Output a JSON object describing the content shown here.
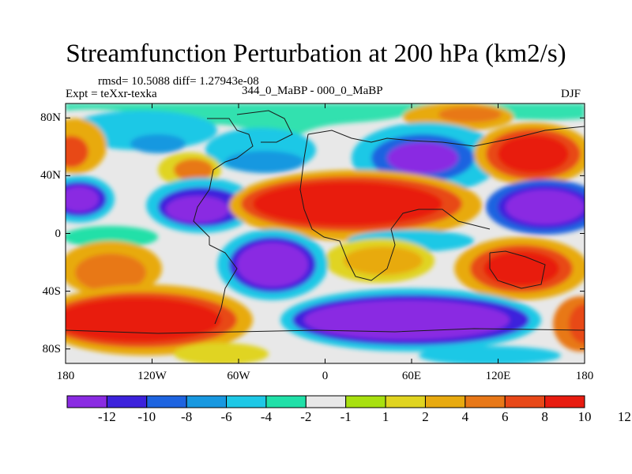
{
  "title": "Streamfunction Perturbation at 200 hPa (km2/s)",
  "stats_text": "rmsd= 10.5088 diff= 1.27943e-08",
  "left_label": "Expt = teXxr-texka",
  "center_label": "344_0_MaBP - 000_0_MaBP",
  "right_label": "DJF",
  "lat_ticks": [
    {
      "label": "80N",
      "value": 80
    },
    {
      "label": "40N",
      "value": 40
    },
    {
      "label": "0",
      "value": 0
    },
    {
      "label": "40S",
      "value": -40
    },
    {
      "label": "80S",
      "value": -80
    }
  ],
  "lon_ticks": [
    {
      "label": "180",
      "value": -180
    },
    {
      "label": "120W",
      "value": -120
    },
    {
      "label": "60W",
      "value": -60
    },
    {
      "label": "0",
      "value": 0
    },
    {
      "label": "60E",
      "value": 60
    },
    {
      "label": "120E",
      "value": 120
    },
    {
      "label": "180",
      "value": 180
    }
  ],
  "colorbar": {
    "colors": [
      "#8a2be2",
      "#3c22dc",
      "#1e64e0",
      "#1898e0",
      "#1ec8e6",
      "#20e0a8",
      "#e8e8e8",
      "#a8e010",
      "#e0d420",
      "#e8aa10",
      "#e87818",
      "#e84818",
      "#e81c10"
    ],
    "labels": [
      "-12",
      "-10",
      "-8",
      "-6",
      "-4",
      "-2",
      "-1",
      "1",
      "2",
      "4",
      "6",
      "8",
      "10",
      "12"
    ]
  },
  "colors": {
    "neutral": "#e8e8e8",
    "coast": "#1a1a1a"
  }
}
